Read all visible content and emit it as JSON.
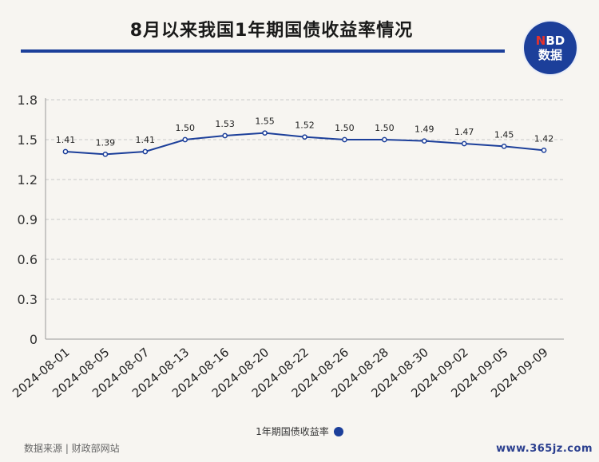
{
  "title": "8月以来我国1年期国债收益率情况",
  "logo": {
    "line1_n": "N",
    "line1_rest": "BD",
    "line2": "数据"
  },
  "legend_label": "1年期国债收益率",
  "source": "数据来源 | 财政部网站",
  "site_watermark": "www.365jz.com",
  "colors": {
    "line": "#1c3f9a",
    "accent_red": "#e8322b",
    "background": "#f7f5f1"
  },
  "chart_data": {
    "type": "line",
    "categories": [
      "2024-08-01",
      "2024-08-05",
      "2024-08-07",
      "2024-08-13",
      "2024-08-16",
      "2024-08-20",
      "2024-08-22",
      "2024-08-26",
      "2024-08-28",
      "2024-08-30",
      "2024-09-02",
      "2024-09-05",
      "2024-09-09"
    ],
    "series": [
      {
        "name": "1年期国债收益率",
        "values": [
          1.41,
          1.39,
          1.41,
          1.5,
          1.53,
          1.55,
          1.52,
          1.5,
          1.5,
          1.49,
          1.47,
          1.45,
          1.42
        ]
      }
    ],
    "data_labels": [
      "1.41",
      "1.39",
      "1.41",
      "1.50",
      "1.53",
      "1.55",
      "1.52",
      "1.50",
      "1.50",
      "1.49",
      "1.47",
      "1.45",
      "1.42"
    ],
    "yticks": [
      "0",
      "0.3",
      "0.6",
      "0.9",
      "1.2",
      "1.5",
      "1.8"
    ],
    "ylim": [
      0,
      1.8
    ],
    "grid": true,
    "legend_position": "bottom"
  }
}
